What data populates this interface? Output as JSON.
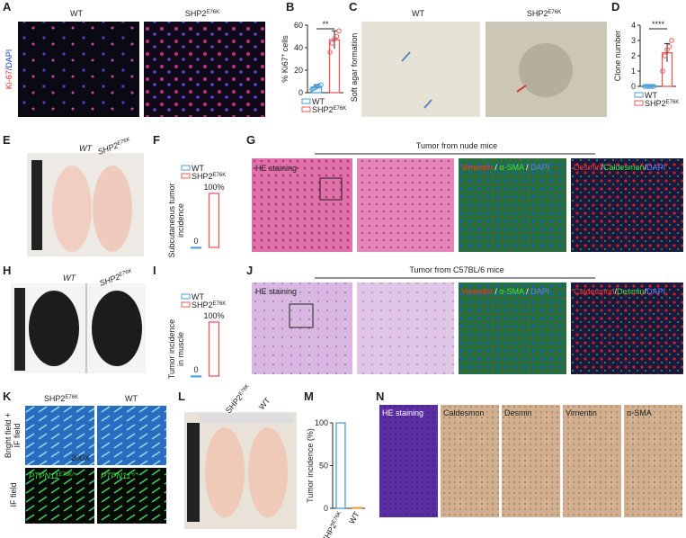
{
  "figure": {
    "A": {
      "label": "A",
      "col1": "WT",
      "col2": "SHP2",
      "col2_sup": "E76K",
      "stain1": "Ki-67",
      "stain2": "/DAPI"
    },
    "B": {
      "label": "B",
      "chart": {
        "type": "bar",
        "ylabel": "% Ki67",
        "ylabel_sup": "+",
        "ylabel_end": " cells",
        "ylim": [
          0,
          60
        ],
        "yticks": [
          0,
          20,
          40,
          60
        ],
        "legend": "below",
        "significance": "**",
        "series": [
          {
            "name": "WT",
            "color": "#4a9fd8",
            "value": 5,
            "error": 2,
            "points": [
              3,
              4,
              5,
              6,
              7
            ]
          },
          {
            "name": "SHP2",
            "sup": "E76K",
            "color": "#e85a5a",
            "value": 47,
            "error": 8,
            "points": [
              36,
              44,
              48,
              50,
              55
            ]
          }
        ]
      }
    },
    "C": {
      "label": "C",
      "col1": "WT",
      "col2": "SHP2",
      "col2_sup": "E76K",
      "ylabel": "Soft agar formation"
    },
    "D": {
      "label": "D",
      "chart": {
        "type": "bar",
        "ylabel": "Clone number",
        "ylim": [
          0,
          4
        ],
        "yticks": [
          0,
          1,
          2,
          3,
          4
        ],
        "legend": "below",
        "significance": "****",
        "series": [
          {
            "name": "WT",
            "color": "#4a9fd8",
            "value": 0.05,
            "error": 0,
            "points": [
              0,
              0,
              0,
              0,
              0
            ]
          },
          {
            "name": "SHP2",
            "sup": "E76K",
            "color": "#e85a5a",
            "value": 2.2,
            "error": 0.6,
            "points": [
              1,
              2,
              2.4,
              2.6,
              3
            ]
          }
        ]
      }
    },
    "E": {
      "label": "E",
      "col1": "WT",
      "col2": "SHP2",
      "col2_sup": "E76K"
    },
    "F": {
      "label": "F",
      "chart": {
        "type": "bar",
        "ylabel": "Subcutaneous tumor",
        "ylabel2": "incidence",
        "ylim": [
          0,
          100
        ],
        "legend": "top",
        "series": [
          {
            "name": "WT",
            "color": "#4a9fd8",
            "value": 0,
            "value_label": "0"
          },
          {
            "name": "SHP2",
            "sup": "E76K",
            "color": "#e85a5a",
            "value": 100,
            "value_label": "100%"
          }
        ]
      }
    },
    "G": {
      "label": "G",
      "title": "Tumor from nude mice",
      "he": "HE staining",
      "s3": [
        "Vimentin",
        " / ",
        "α-SMA",
        " / ",
        "DAPI"
      ],
      "s4": [
        "Desmin",
        "/",
        "Caldesmon",
        "/",
        "DAPI"
      ]
    },
    "H": {
      "label": "H",
      "col1": "WT",
      "col2": "SHP2",
      "col2_sup": "E76K"
    },
    "I": {
      "label": "I",
      "chart": {
        "type": "bar",
        "ylabel": "Tumor incidence",
        "ylabel2": "in muscle",
        "ylim": [
          0,
          100
        ],
        "legend": "top",
        "series": [
          {
            "name": "WT",
            "color": "#4a9fd8",
            "value": 0,
            "value_label": "0"
          },
          {
            "name": "SHP2",
            "sup": "E76K",
            "color": "#e85a5a",
            "value": 100,
            "value_label": "100%"
          }
        ]
      }
    },
    "J": {
      "label": "J",
      "title": "Tumor from C57BL/6 mice",
      "he": "HE staining",
      "s3": [
        "Vimentin",
        " / ",
        "α-SMA",
        " / ",
        "DAPI"
      ],
      "s4": [
        "Caldesmon",
        "/",
        "Desmin",
        "/",
        "DAPI"
      ]
    },
    "K": {
      "label": "K",
      "col1": "SHP2",
      "col1_sup": "E76K",
      "col2": "WT",
      "row1a": "Bright field +",
      "row1b": "IF field",
      "row2": "IF field",
      "mag": "200X",
      "g1": "PTPN11",
      "g1_sup": "E76K/+",
      "g2": "PTPN11",
      "g2_sup": "+/+"
    },
    "L": {
      "label": "L",
      "col1": "SHP2",
      "col1_sup": "E76K",
      "col2": "WT"
    },
    "M": {
      "label": "M",
      "chart": {
        "type": "bar",
        "ylabel": "Tumor incidence (%)",
        "ylim": [
          0,
          100
        ],
        "yticks": [
          0,
          50,
          100
        ],
        "series": [
          {
            "name": "SHP2",
            "sup": "E76K",
            "color": "#4a9fd8",
            "value": 100
          },
          {
            "name": "WT",
            "color": "#f0a040",
            "value": 1
          }
        ]
      }
    },
    "N": {
      "label": "N",
      "stains": [
        "HE staining",
        "Caldesmon",
        "Desmin",
        "Vimentin",
        "α-SMA"
      ]
    }
  }
}
